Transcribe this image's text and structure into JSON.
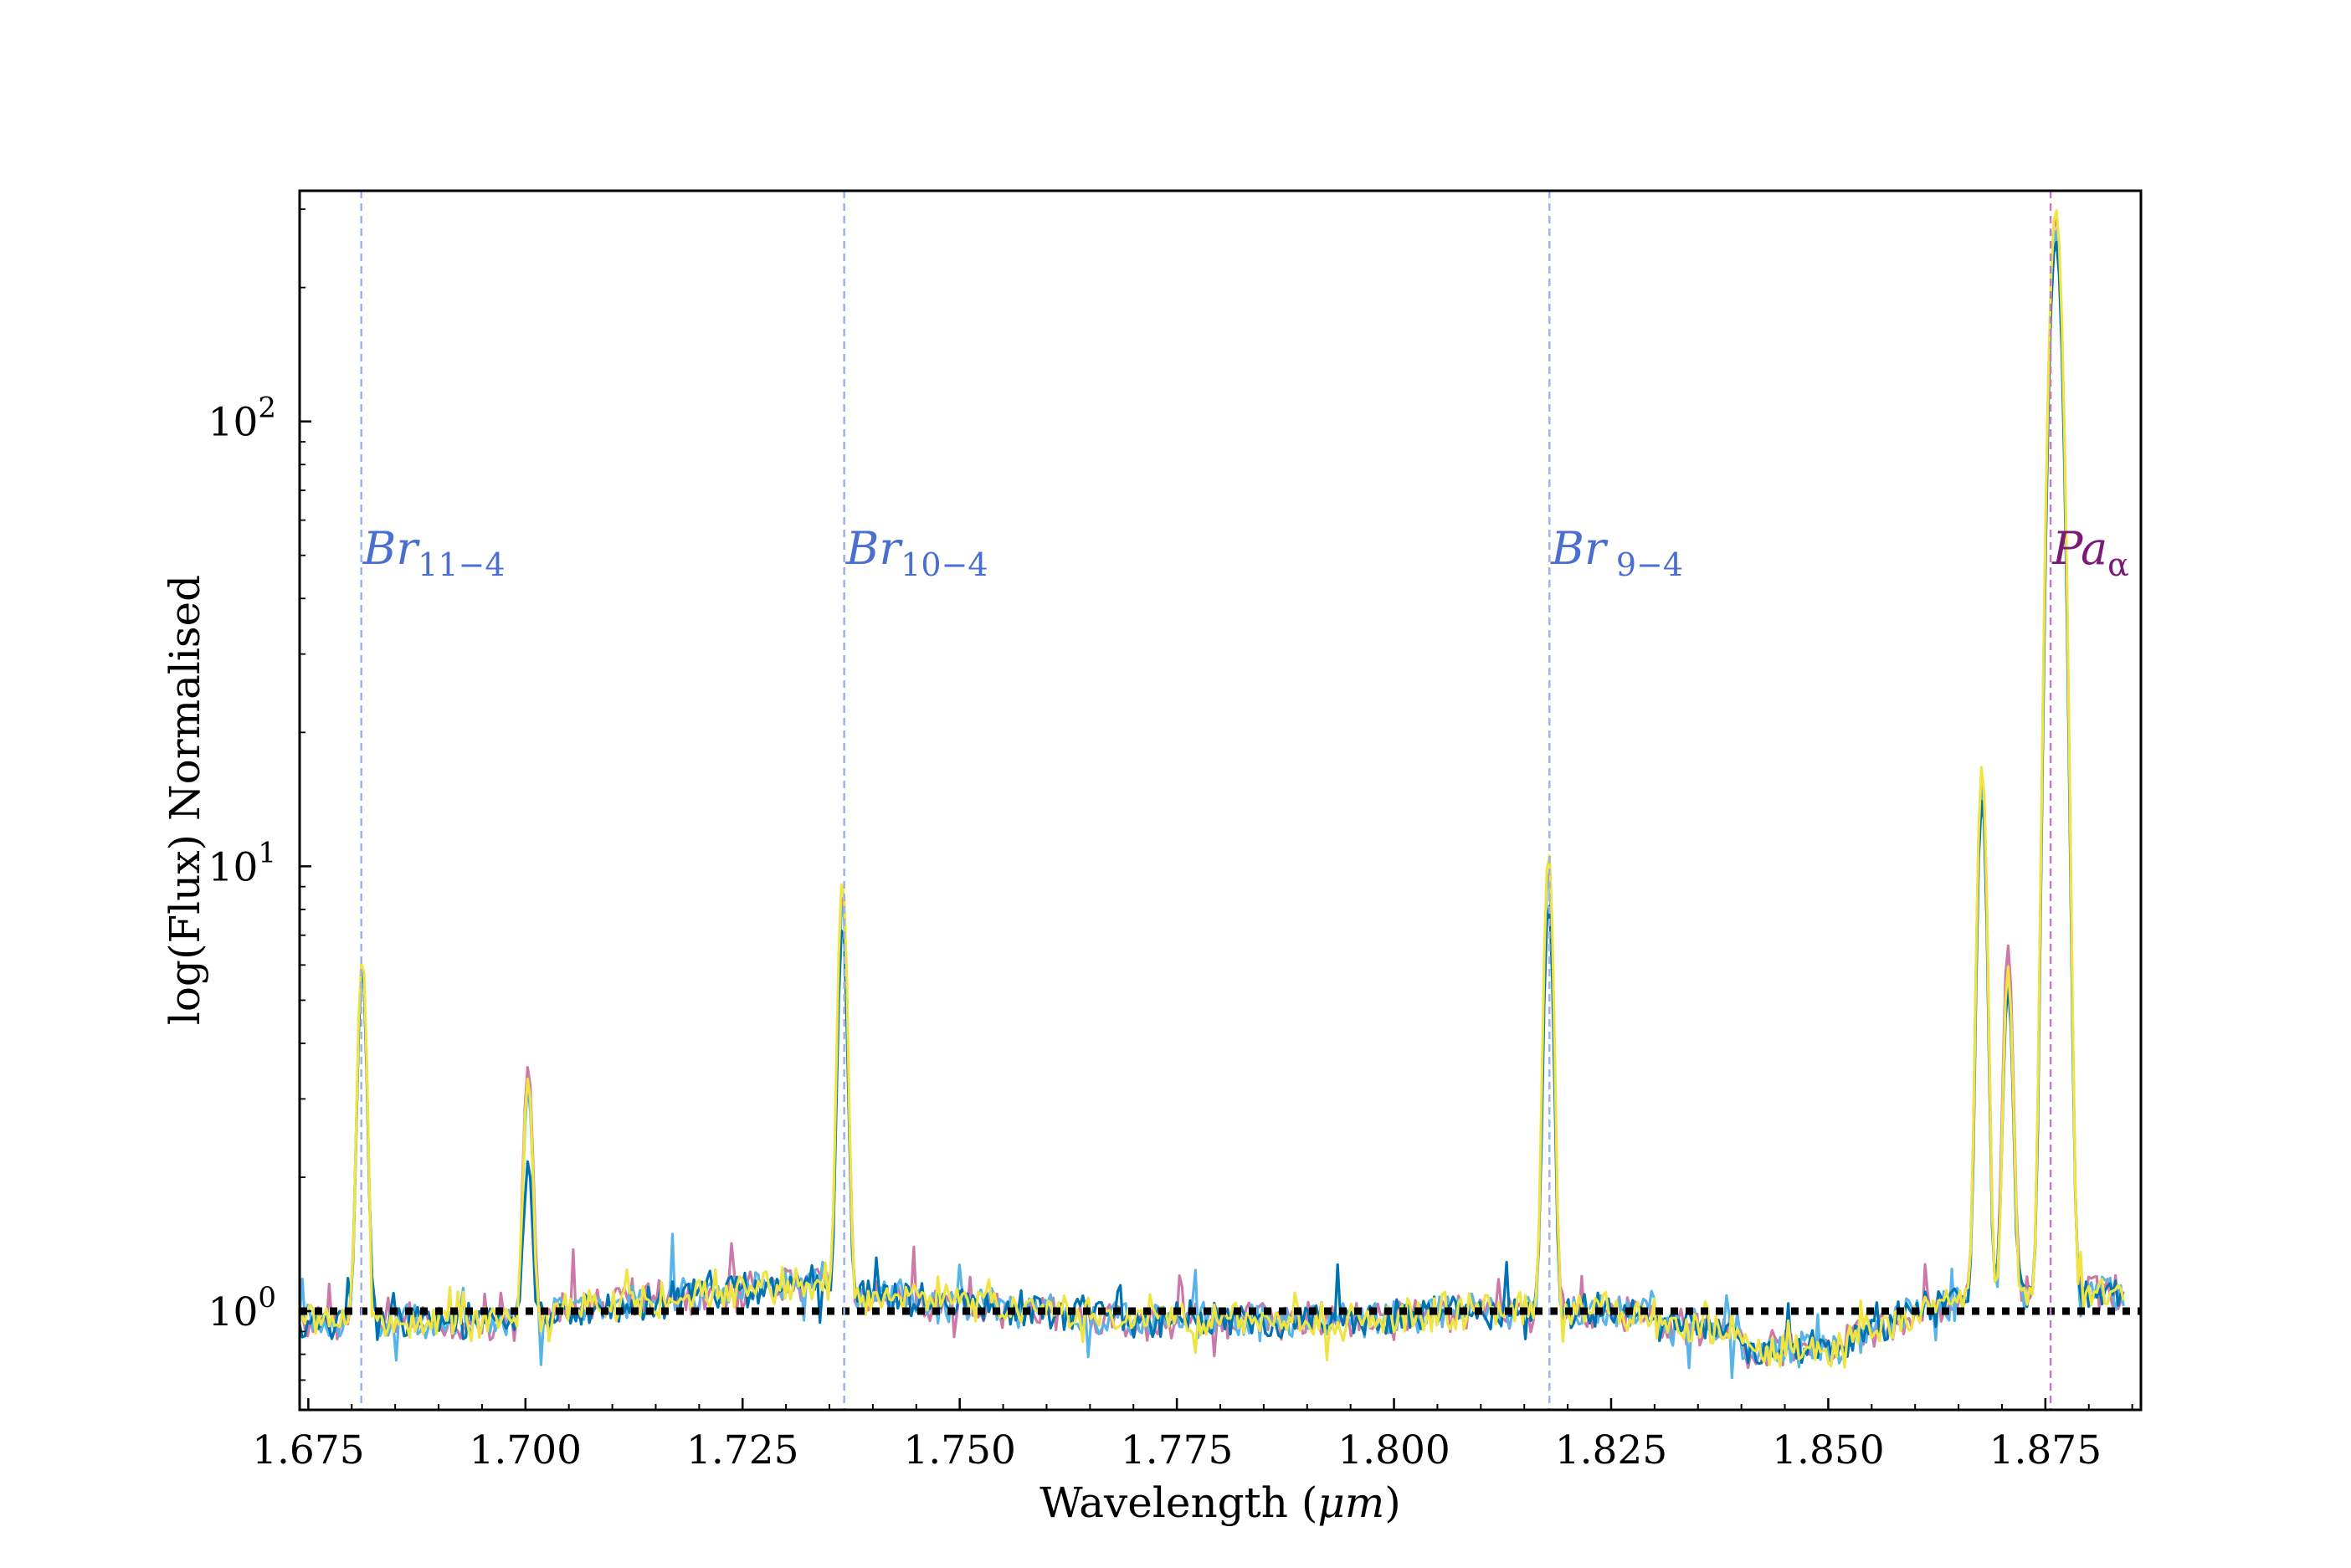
{
  "chart_data": {
    "type": "line",
    "title": "",
    "xlabel": "Wavelength (μm)",
    "xlabel_parts": {
      "main": "Wavelength (",
      "unit": "μm",
      "close": ")"
    },
    "ylabel": "log(Flux) Normalised",
    "xlim": [
      1.674,
      1.886
    ],
    "ylim": [
      0.6,
      330
    ],
    "yscale": "log",
    "grid": false,
    "legend": "none",
    "x_ticks": [
      {
        "value": 1.675,
        "label": "1.675"
      },
      {
        "value": 1.7,
        "label": "1.700"
      },
      {
        "value": 1.725,
        "label": "1.725"
      },
      {
        "value": 1.75,
        "label": "1.750"
      },
      {
        "value": 1.775,
        "label": "1.775"
      },
      {
        "value": 1.8,
        "label": "1.800"
      },
      {
        "value": 1.825,
        "label": "1.825"
      },
      {
        "value": 1.85,
        "label": "1.850"
      },
      {
        "value": 1.875,
        "label": "1.875"
      }
    ],
    "y_ticks": [
      {
        "value": 1,
        "base": "10",
        "exp": "0"
      },
      {
        "value": 10,
        "base": "10",
        "exp": "1"
      },
      {
        "value": 100,
        "base": "10",
        "exp": "2"
      }
    ],
    "reference_line": {
      "y": 1.0,
      "style": "dotted",
      "color": "#000000"
    },
    "emission_lines": [
      {
        "x": 1.6811,
        "name": "Br",
        "sub": "11−4",
        "color": "#4a6fd0",
        "line_color": "#9db2e8"
      },
      {
        "x": 1.7367,
        "name": "Br",
        "sub": "10−4",
        "color": "#4a6fd0",
        "line_color": "#9db2e8"
      },
      {
        "x": 1.8179,
        "name": "Br",
        "sub": " 9−4",
        "color": "#4a6fd0",
        "line_color": "#9db2e8"
      },
      {
        "x": 1.8756,
        "name": "Pa",
        "sub": "α",
        "color": "#7a1b78",
        "line_color": "#c07ec0"
      }
    ],
    "series": [
      {
        "color": "#cc79a7",
        "peaks": [
          [
            1.6812,
            6.1
          ],
          [
            1.7003,
            3.7
          ],
          [
            1.7365,
            8.6
          ],
          [
            1.8178,
            9.9
          ],
          [
            1.8677,
            16.5
          ],
          [
            1.8707,
            6.6
          ],
          [
            1.8762,
            290
          ]
        ]
      },
      {
        "color": "#56b4e9",
        "peaks": [
          [
            1.6812,
            5.9
          ],
          [
            1.7003,
            3.3
          ],
          [
            1.7365,
            8.3
          ],
          [
            1.8178,
            9.7
          ],
          [
            1.8677,
            15.0
          ],
          [
            1.8707,
            5.5
          ],
          [
            1.8762,
            270
          ]
        ]
      },
      {
        "color": "#0072b2",
        "peaks": [
          [
            1.6812,
            6.0
          ],
          [
            1.7003,
            2.2
          ],
          [
            1.7365,
            7.2
          ],
          [
            1.8178,
            8.3
          ],
          [
            1.8677,
            14.3
          ],
          [
            1.8707,
            5.3
          ],
          [
            1.8762,
            255
          ]
        ]
      },
      {
        "color": "#f0e442",
        "peaks": [
          [
            1.6812,
            6.3
          ],
          [
            1.7003,
            3.4
          ],
          [
            1.7365,
            9.2
          ],
          [
            1.8178,
            10.8
          ],
          [
            1.8677,
            16.7
          ],
          [
            1.8707,
            5.8
          ],
          [
            1.8762,
            300
          ]
        ]
      }
    ]
  }
}
